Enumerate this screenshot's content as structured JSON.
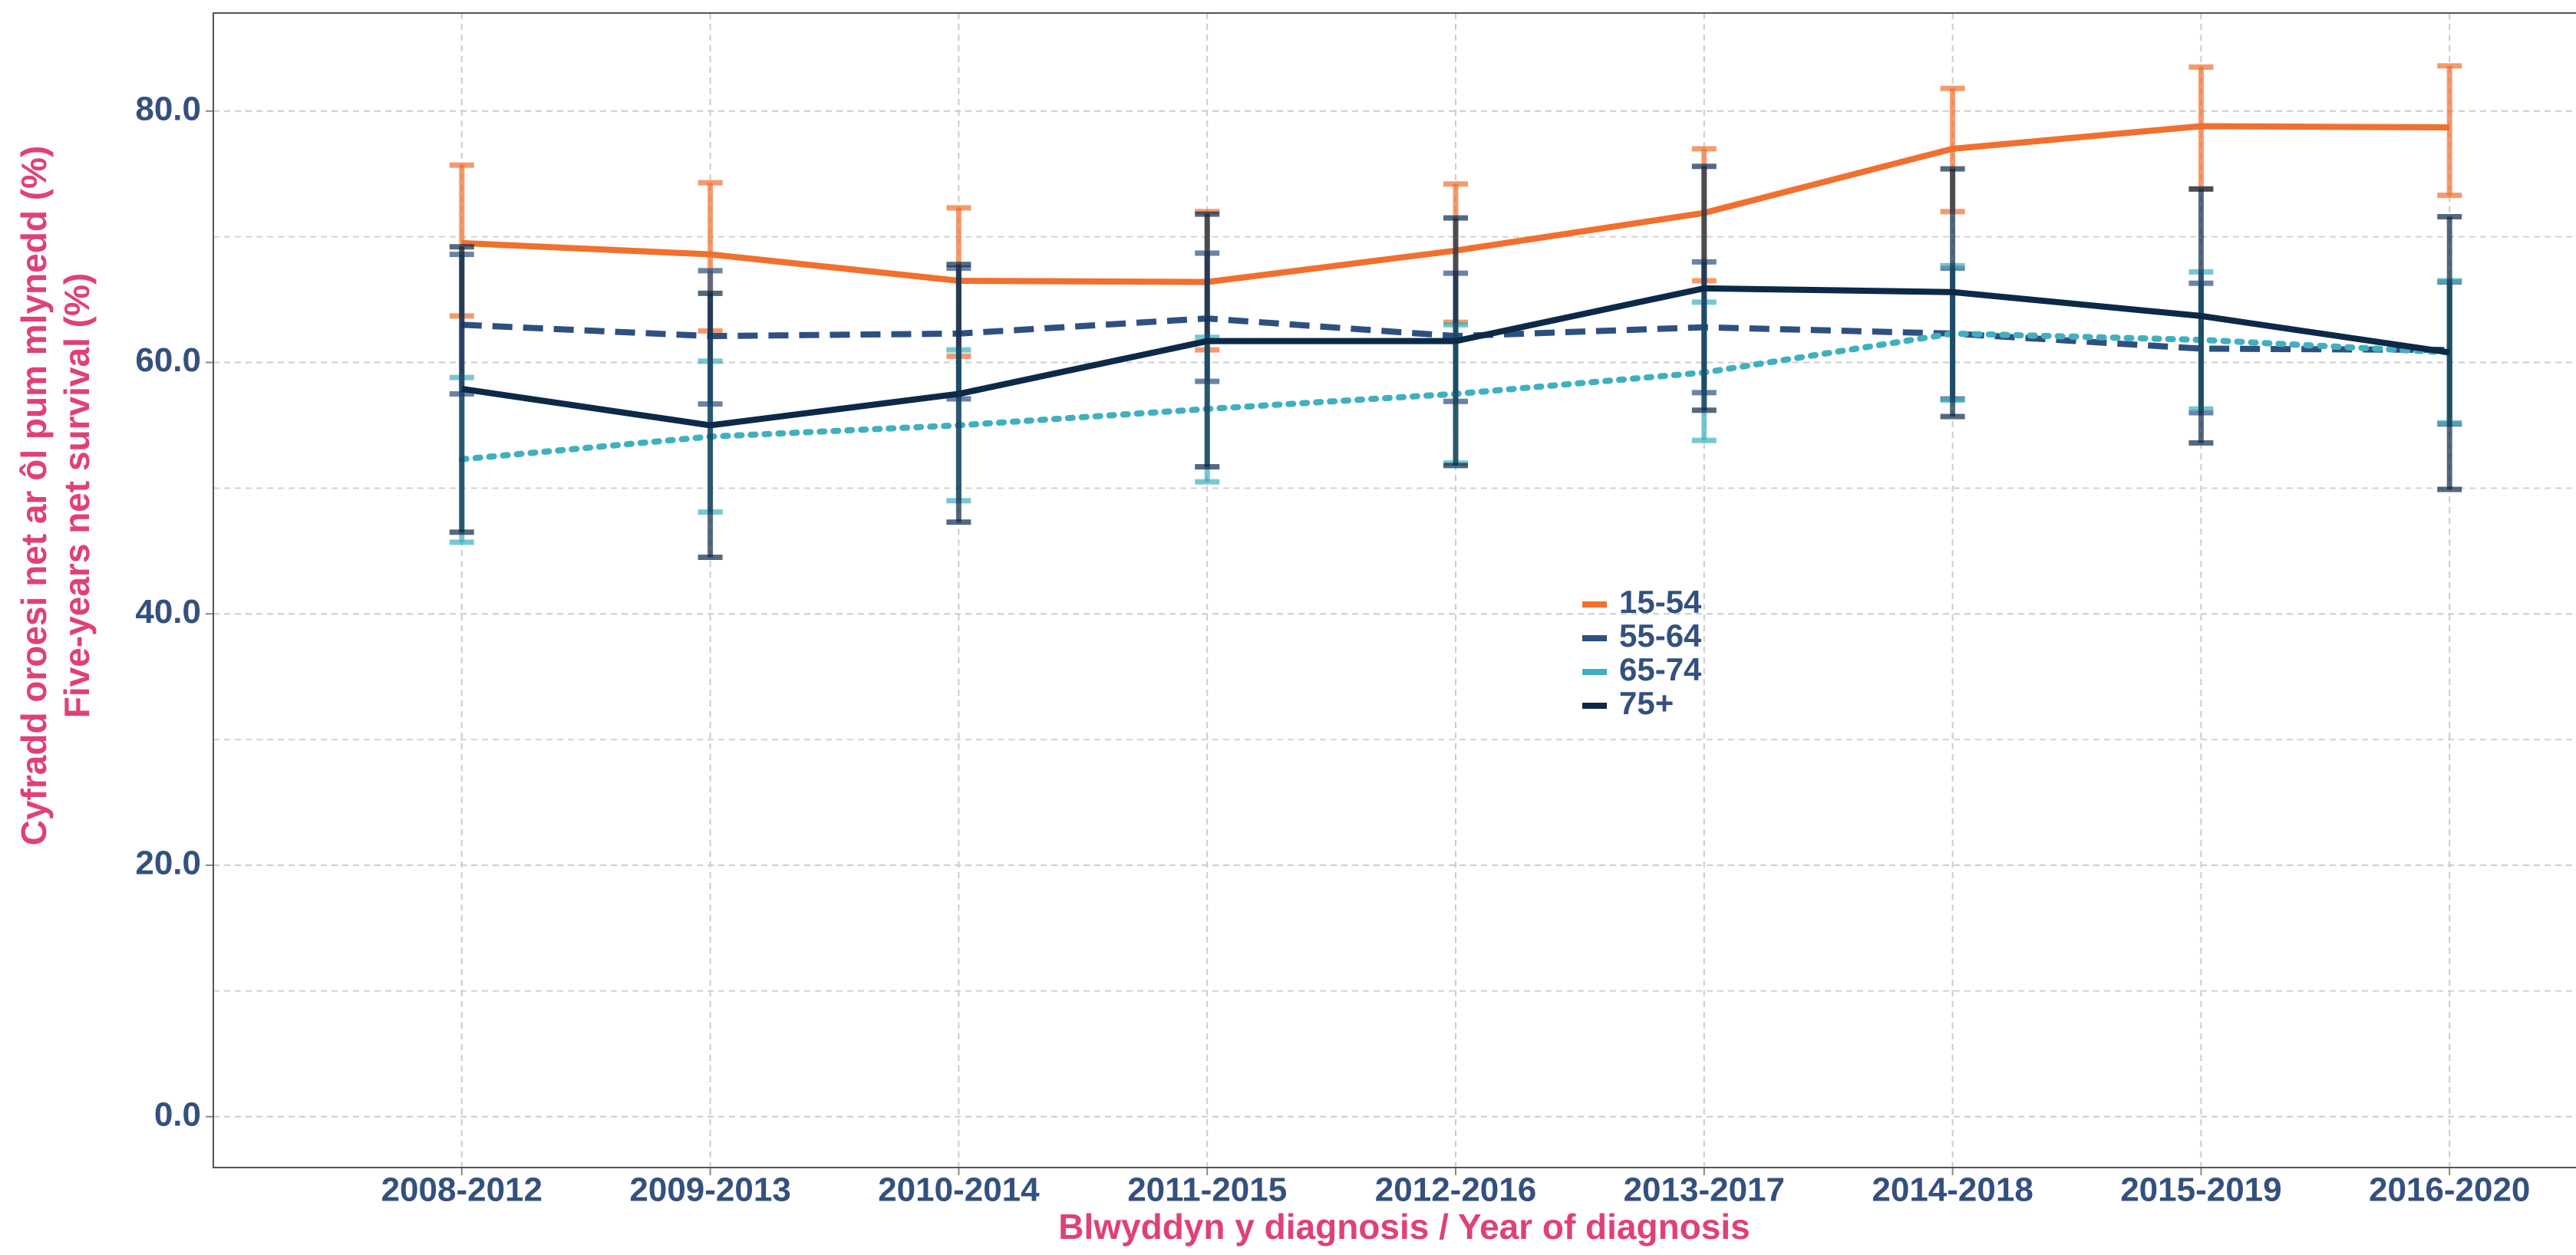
{
  "chart_data": {
    "type": "line",
    "xlabel": "Blwyddyn y diagnosis / Year of diagnosis",
    "ylabel": [
      "Cyfradd oroesi net ar ôl pum mlynedd (%)",
      "Five-years net survival (%)"
    ],
    "categories": [
      "2008-2012",
      "2009-2013",
      "2010-2014",
      "2011-2015",
      "2012-2016",
      "2013-2017",
      "2014-2018",
      "2015-2019",
      "2016-2020"
    ],
    "ylim": [
      -4.05,
      87.8
    ],
    "yticks": [
      {
        "value": 0,
        "label": "0.0"
      },
      {
        "value": 20,
        "label": "20.0"
      },
      {
        "value": 40,
        "label": "40.0"
      },
      {
        "value": 60,
        "label": "60.0"
      },
      {
        "value": 80,
        "label": "80.0"
      }
    ],
    "minor_yticks": [
      10,
      30,
      50,
      70
    ],
    "grid": true,
    "series": [
      {
        "name": "15-54",
        "color": "#f07030",
        "linestyle": "solid",
        "values": [
          69.5,
          68.6,
          66.5,
          66.4,
          68.9,
          71.9,
          77.0,
          78.8,
          78.7
        ],
        "lower": [
          63.7,
          62.5,
          60.5,
          61.0,
          63.2,
          66.5,
          72.0,
          73.8,
          73.3
        ],
        "upper": [
          75.7,
          74.3,
          72.3,
          72.0,
          74.2,
          77.0,
          81.8,
          83.5,
          83.6
        ]
      },
      {
        "name": "55-64",
        "color": "#2e5080",
        "linestyle": "dashed",
        "values": [
          63.0,
          62.1,
          62.3,
          63.5,
          62.1,
          62.8,
          62.3,
          61.1,
          61.0
        ],
        "lower": [
          57.5,
          56.7,
          57.1,
          58.5,
          56.9,
          57.6,
          57.1,
          56.0,
          55.1
        ],
        "upper": [
          68.6,
          67.3,
          67.5,
          68.7,
          67.1,
          68.0,
          67.5,
          66.3,
          66.4
        ]
      },
      {
        "name": "65-74",
        "color": "#40b0c0",
        "linestyle": "dotted",
        "values": [
          52.3,
          54.1,
          55.0,
          56.3,
          57.5,
          59.2,
          62.3,
          61.8,
          60.8
        ],
        "lower": [
          45.7,
          48.1,
          49.0,
          50.5,
          52.0,
          53.8,
          57.0,
          56.3,
          55.2
        ],
        "upper": [
          58.8,
          60.1,
          61.0,
          62.0,
          63.0,
          64.8,
          67.7,
          67.2,
          66.5
        ]
      },
      {
        "name": "75+",
        "color": "#0c2a48",
        "linestyle": "solid",
        "values": [
          57.9,
          55.0,
          57.5,
          61.7,
          61.7,
          65.9,
          65.6,
          63.7,
          60.8
        ],
        "lower": [
          46.5,
          44.5,
          47.3,
          51.7,
          51.8,
          56.2,
          55.7,
          53.6,
          49.9
        ],
        "upper": [
          69.2,
          65.5,
          67.8,
          71.8,
          71.5,
          75.6,
          75.4,
          73.8,
          71.6
        ]
      }
    ]
  }
}
